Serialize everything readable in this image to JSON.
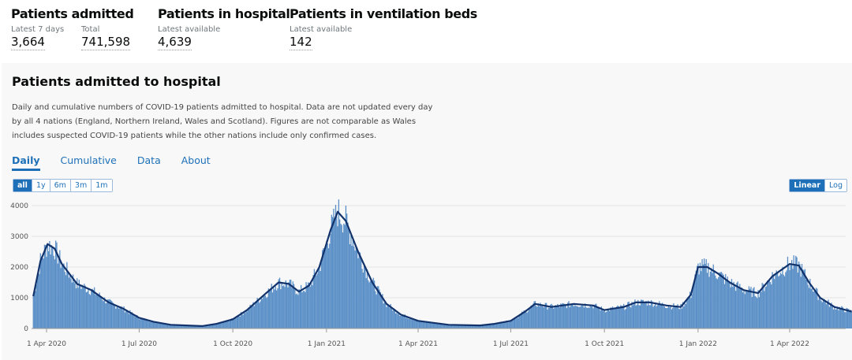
{
  "summary": [
    {
      "title": "Patients admitted",
      "items": [
        {
          "label": "Latest 7 days",
          "value": "3,664"
        },
        {
          "label": "Total",
          "value": "741,598"
        }
      ]
    },
    {
      "title": "Patients in hospital",
      "items": [
        {
          "label": "Latest available",
          "value": "4,639"
        }
      ]
    },
    {
      "title": "Patients in ventilation beds",
      "items": [
        {
          "label": "Latest available",
          "value": "142"
        }
      ]
    }
  ],
  "card": {
    "title": "Patients admitted to hospital",
    "description": "Daily and cumulative numbers of COVID-19 patients admitted to hospital. Data are not updated every day by all 4 nations (England, Northern Ireland, Wales and Scotland). Figures are not comparable as Wales includes suspected COVID-19 patients while the other nations include only confirmed cases.",
    "tabs": [
      "Daily",
      "Cumulative",
      "Data",
      "About"
    ],
    "range_buttons": [
      "all",
      "1y",
      "6m",
      "3m",
      "1m"
    ],
    "scale_buttons": [
      "Linear",
      "Log"
    ]
  },
  "chart_data": {
    "type": "bar",
    "colors": {
      "bars": "#5a8fc7",
      "line": "#12326b"
    },
    "ylim": [
      0,
      4000
    ],
    "yticks": [
      "0",
      "1000",
      "2000",
      "3000",
      "4000"
    ],
    "xticks": [
      {
        "date": "2020-04-01",
        "label": "1 Apr 2020"
      },
      {
        "date": "2020-07-01",
        "label": "1 Jul 2020"
      },
      {
        "date": "2020-10-01",
        "label": "1 Oct 2020"
      },
      {
        "date": "2021-01-01",
        "label": "1 Jan 2021"
      },
      {
        "date": "2021-04-01",
        "label": "1 Apr 2021"
      },
      {
        "date": "2021-07-01",
        "label": "1 Jul 2021"
      },
      {
        "date": "2021-10-01",
        "label": "1 Oct 2021"
      },
      {
        "date": "2022-01-01",
        "label": "1 Jan 2022"
      },
      {
        "date": "2022-04-01",
        "label": "1 Apr 2022"
      }
    ],
    "grid": true,
    "series_rolling_average": [
      [
        "2020-03-19",
        1050
      ],
      [
        "2020-03-26",
        2200
      ],
      [
        "2020-04-02",
        2750
      ],
      [
        "2020-04-09",
        2600
      ],
      [
        "2020-04-16",
        2100
      ],
      [
        "2020-04-23",
        1800
      ],
      [
        "2020-05-01",
        1450
      ],
      [
        "2020-05-15",
        1250
      ],
      [
        "2020-06-01",
        850
      ],
      [
        "2020-06-15",
        650
      ],
      [
        "2020-07-01",
        350
      ],
      [
        "2020-07-15",
        220
      ],
      [
        "2020-08-01",
        120
      ],
      [
        "2020-09-01",
        80
      ],
      [
        "2020-09-15",
        150
      ],
      [
        "2020-10-01",
        300
      ],
      [
        "2020-10-15",
        600
      ],
      [
        "2020-11-01",
        1100
      ],
      [
        "2020-11-15",
        1500
      ],
      [
        "2020-11-25",
        1450
      ],
      [
        "2020-12-05",
        1200
      ],
      [
        "2020-12-15",
        1400
      ],
      [
        "2020-12-25",
        2000
      ],
      [
        "2021-01-05",
        3200
      ],
      [
        "2021-01-12",
        3800
      ],
      [
        "2021-01-20",
        3500
      ],
      [
        "2021-02-01",
        2500
      ],
      [
        "2021-02-15",
        1500
      ],
      [
        "2021-03-01",
        800
      ],
      [
        "2021-03-15",
        450
      ],
      [
        "2021-04-01",
        250
      ],
      [
        "2021-05-01",
        120
      ],
      [
        "2021-06-01",
        100
      ],
      [
        "2021-06-15",
        150
      ],
      [
        "2021-07-01",
        250
      ],
      [
        "2021-07-15",
        550
      ],
      [
        "2021-07-25",
        800
      ],
      [
        "2021-08-10",
        700
      ],
      [
        "2021-09-01",
        800
      ],
      [
        "2021-09-20",
        750
      ],
      [
        "2021-10-01",
        600
      ],
      [
        "2021-10-20",
        700
      ],
      [
        "2021-11-01",
        850
      ],
      [
        "2021-11-15",
        850
      ],
      [
        "2021-12-01",
        750
      ],
      [
        "2021-12-15",
        700
      ],
      [
        "2021-12-25",
        1100
      ],
      [
        "2022-01-01",
        2000
      ],
      [
        "2022-01-10",
        2000
      ],
      [
        "2022-01-20",
        1800
      ],
      [
        "2022-02-01",
        1500
      ],
      [
        "2022-02-15",
        1250
      ],
      [
        "2022-03-01",
        1150
      ],
      [
        "2022-03-15",
        1700
      ],
      [
        "2022-04-01",
        2100
      ],
      [
        "2022-04-10",
        2050
      ],
      [
        "2022-04-20",
        1500
      ],
      [
        "2022-05-01",
        1000
      ],
      [
        "2022-05-15",
        700
      ],
      [
        "2022-06-01",
        550
      ]
    ]
  }
}
